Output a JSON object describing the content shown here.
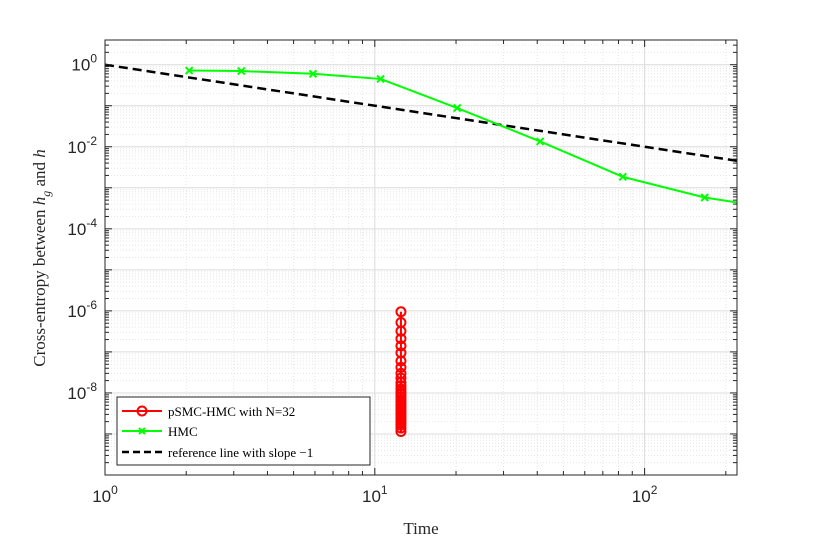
{
  "chart_data": {
    "type": "line",
    "title": "",
    "xlabel": "Time",
    "ylabel": {
      "prefix": "Cross-entropy between ",
      "h": "h",
      "sub": "g",
      "mid": " and ",
      "h2": "h"
    },
    "xscale": "log",
    "yscale": "log",
    "xlim": [
      1,
      220
    ],
    "ylim": [
      1e-10,
      4
    ],
    "grid": true,
    "legend_position": "bottom-left",
    "xticks": [
      {
        "value": 1,
        "base": "10",
        "exp": "0"
      },
      {
        "value": 10,
        "base": "10",
        "exp": "1"
      },
      {
        "value": 100,
        "base": "10",
        "exp": "2"
      }
    ],
    "yticks": [
      {
        "value": 1e-08,
        "base": "10",
        "exp": "-8"
      },
      {
        "value": 1e-06,
        "base": "10",
        "exp": "-6"
      },
      {
        "value": 0.0001,
        "base": "10",
        "exp": "-4"
      },
      {
        "value": 0.01,
        "base": "10",
        "exp": "-2"
      },
      {
        "value": 1,
        "base": "10",
        "exp": "0"
      }
    ],
    "series": [
      {
        "name": "pSMC-HMC with N=32",
        "color": "#ff0000",
        "marker": "circle",
        "line": "solid",
        "x": [
          12.5,
          12.5,
          12.5,
          12.5,
          12.5,
          12.5,
          12.5,
          12.5,
          12.5,
          12.5,
          12.5,
          12.5,
          12.5,
          12.5,
          12.5,
          12.5,
          12.5,
          12.5,
          12.5,
          12.5,
          12.5,
          12.5,
          12.5,
          12.5,
          12.5,
          12.5,
          12.5,
          12.5,
          12.5,
          12.5
        ],
        "y": [
          9.5e-07,
          5.2e-07,
          3.2e-07,
          2.1e-07,
          1.4e-07,
          9.5e-08,
          6e-08,
          4.2e-08,
          3e-08,
          2.3e-08,
          1.8e-08,
          1.5e-08,
          1.25e-08,
          1.05e-08,
          9e-09,
          7.8e-09,
          6.8e-09,
          6e-09,
          5.3e-09,
          4.7e-09,
          4.1e-09,
          3.6e-09,
          3.2e-09,
          2.8e-09,
          2.45e-09,
          2.15e-09,
          1.9e-09,
          1.65e-09,
          1.4e-09,
          1.15e-09
        ]
      },
      {
        "name": "HMC",
        "color": "#00ff00",
        "marker": "x",
        "line": "solid",
        "x": [
          2.05,
          3.2,
          5.9,
          10.5,
          20.2,
          41,
          83,
          167,
          230
        ],
        "y": [
          0.72,
          0.7,
          0.6,
          0.45,
          0.088,
          0.0135,
          0.00185,
          0.00058,
          0.00042
        ]
      },
      {
        "name": "reference line with slope −1",
        "color": "#000000",
        "marker": "none",
        "line": "dashed",
        "x": [
          1,
          230
        ],
        "y": [
          1,
          0.00435
        ]
      }
    ]
  }
}
